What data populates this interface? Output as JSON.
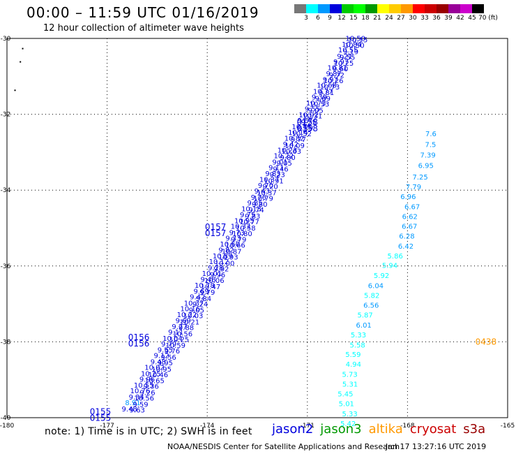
{
  "header": {
    "title": "00:00 – 11:59 UTC 01/16/2019",
    "subtitle": "12 hour collection of altimeter wave heights"
  },
  "color_scale": {
    "colors": [
      "#777777",
      "#00ffff",
      "#0099ff",
      "#0000dd",
      "#00cc00",
      "#00ff00",
      "#009900",
      "#ffff00",
      "#ffcc00",
      "#ff9900",
      "#ff0000",
      "#cc0000",
      "#990000",
      "#990099",
      "#cc00cc",
      "#000000"
    ],
    "labels": [
      "3",
      "6",
      "9",
      "12",
      "15",
      "18",
      "21",
      "24",
      "27",
      "30",
      "33",
      "36",
      "39",
      "42",
      "45",
      "70 (ft)"
    ]
  },
  "map": {
    "lon_ticks": [
      "-180",
      "-177",
      "-174",
      "-171",
      "-168",
      "-165"
    ],
    "lat_ticks": [
      "-30",
      "-32",
      "-34",
      "-36",
      "-38",
      "-40"
    ]
  },
  "chart_data": {
    "type": "scatter",
    "xlim": [
      -180,
      -165
    ],
    "ylim": [
      -40,
      -30
    ],
    "grid": true,
    "tracks": [
      {
        "name": "jason2",
        "values": [
          "9.48",
          "8.91",
          "9.34",
          "10.76",
          "10.55",
          "9.96",
          "10.25",
          "10.02",
          "9.48",
          "9.12",
          "9.55",
          "9.79",
          "10.04",
          "9.11",
          "9.27",
          "9.69",
          "10.22",
          "10.16",
          "10.37",
          "9.42",
          "9.69",
          "10.78",
          "9.48",
          "10.01",
          "9.28",
          "10.12",
          "10.89",
          "9.82",
          "10.60",
          "9.33",
          "9.73",
          "10.33",
          "10.95",
          "9.75",
          "10.13",
          "9.85",
          "9.76",
          "9.43",
          "9.70",
          "10.37",
          "9.83",
          "9.11",
          "9.01",
          "10.22",
          "10.23",
          "9.42",
          "10.82",
          "10.14",
          "10.45",
          "9.67",
          "10.92",
          "9.55",
          "10.73",
          "9.39",
          "10.77",
          "10.68",
          "9.97",
          "9.87",
          "10.81",
          "9.97",
          "9.21",
          "10.55",
          "10.84",
          "10.50"
        ],
        "lon": [
          -176.33,
          -176.23,
          -176.12,
          -176.01,
          -175.9,
          -175.8,
          -175.69,
          -175.58,
          -175.47,
          -175.37,
          -175.26,
          -175.15,
          -175.04,
          -174.94,
          -174.83,
          -174.72,
          -174.61,
          -174.51,
          -174.4,
          -174.29,
          -174.18,
          -174.08,
          -173.97,
          -173.86,
          -173.75,
          -173.65,
          -173.54,
          -173.43,
          -173.32,
          -173.22,
          -173.11,
          -173.0,
          -172.89,
          -172.79,
          -172.68,
          -172.57,
          -172.46,
          -172.36,
          -172.25,
          -172.14,
          -172.03,
          -171.93,
          -171.82,
          -171.71,
          -171.6,
          -171.5,
          -171.39,
          -171.28,
          -171.17,
          -171.07,
          -170.96,
          -170.85,
          -170.74,
          -170.64,
          -170.53,
          -170.42,
          -170.31,
          -170.21,
          -170.1,
          -169.99,
          -169.88,
          -169.78,
          -169.67,
          -169.56
        ],
        "lat": [
          -39.83,
          -39.67,
          -39.52,
          -39.36,
          -39.21,
          -39.05,
          -38.9,
          -38.74,
          -38.59,
          -38.43,
          -38.28,
          -38.12,
          -37.97,
          -37.81,
          -37.66,
          -37.5,
          -37.35,
          -37.19,
          -37.04,
          -36.88,
          -36.73,
          -36.57,
          -36.42,
          -36.26,
          -36.11,
          -35.95,
          -35.8,
          -35.64,
          -35.49,
          -35.33,
          -35.18,
          -35.02,
          -34.87,
          -34.71,
          -34.56,
          -34.4,
          -34.25,
          -34.09,
          -33.94,
          -33.78,
          -33.63,
          -33.47,
          -33.32,
          -33.16,
          -33.01,
          -32.85,
          -32.7,
          -32.54,
          -32.39,
          -32.23,
          -32.08,
          -31.92,
          -31.77,
          -31.61,
          -31.46,
          -31.3,
          -31.15,
          -30.99,
          -30.84,
          -30.68,
          -30.53,
          -30.37,
          -30.22,
          -30.06
        ]
      },
      {
        "name": "cryosat",
        "values": [
          "9.63",
          "9.59",
          "10.56",
          "9.26",
          "9.36",
          "10.65",
          "10.46",
          "10.95",
          "9.95",
          "9.56",
          "9.76",
          "10.59",
          "10.25",
          "10.56",
          "9.88",
          "10.21",
          "10.03",
          "9.05",
          "9.24",
          "9.84",
          "9.79",
          "10.47",
          "10.06",
          "9.96",
          "9.92",
          "10.00",
          "10.93",
          "10.87",
          "10.66",
          "9.79",
          "10.80",
          "10.58",
          "10.77",
          "9.83",
          "9.74",
          "9.80",
          "10.79",
          "10.37",
          "9.20",
          "10.91",
          "9.23",
          "9.46",
          "9.05",
          "9.80",
          "10.63",
          "10.09",
          "9.77",
          "10.52",
          "9.79",
          "9.25",
          "10.31",
          "9.05",
          "10.53",
          "9.69",
          "9.81",
          "10.73",
          "10.26",
          "9.72",
          "9.60",
          "10.25",
          "9.55",
          "9.19",
          "10.50",
          "10.15"
        ],
        "lon": [
          -176.1,
          -176.0,
          -175.89,
          -175.79,
          -175.68,
          -175.58,
          -175.47,
          -175.37,
          -175.26,
          -175.16,
          -175.05,
          -174.95,
          -174.84,
          -174.74,
          -174.63,
          -174.53,
          -174.42,
          -174.32,
          -174.21,
          -174.11,
          -174.0,
          -173.9,
          -173.79,
          -173.69,
          -173.58,
          -173.48,
          -173.37,
          -173.27,
          -173.16,
          -173.06,
          -172.95,
          -172.85,
          -172.74,
          -172.64,
          -172.53,
          -172.43,
          -172.32,
          -172.22,
          -172.11,
          -172.01,
          -171.9,
          -171.8,
          -171.69,
          -171.59,
          -171.48,
          -171.38,
          -171.27,
          -171.17,
          -171.06,
          -170.96,
          -170.85,
          -170.75,
          -170.64,
          -170.54,
          -170.43,
          -170.33,
          -170.22,
          -170.12,
          -170.01,
          -169.91,
          -169.8,
          -169.7,
          -169.59,
          -169.49
        ],
        "lat": [
          -39.86,
          -39.71,
          -39.55,
          -39.4,
          -39.24,
          -39.09,
          -38.93,
          -38.78,
          -38.62,
          -38.47,
          -38.31,
          -38.16,
          -38.0,
          -37.85,
          -37.69,
          -37.54,
          -37.38,
          -37.23,
          -37.07,
          -36.92,
          -36.76,
          -36.61,
          -36.45,
          -36.3,
          -36.14,
          -35.99,
          -35.83,
          -35.68,
          -35.52,
          -35.37,
          -35.21,
          -35.06,
          -34.9,
          -34.75,
          -34.59,
          -34.44,
          -34.28,
          -34.13,
          -33.97,
          -33.82,
          -33.66,
          -33.51,
          -33.35,
          -33.2,
          -33.04,
          -32.89,
          -32.73,
          -32.58,
          -32.42,
          -32.27,
          -32.11,
          -31.96,
          -31.8,
          -31.65,
          -31.49,
          -31.34,
          -31.18,
          -31.03,
          -30.87,
          -30.72,
          -30.56,
          -30.41,
          -30.25,
          -30.1
        ]
      },
      {
        "name": "jason3",
        "values": [
          "6.96",
          "6.67",
          "6.62",
          "6.67",
          "6.28",
          "6.42",
          "5.86",
          "5.94",
          "5.92",
          "6.04",
          "5.82",
          "6.56",
          "5.87",
          "6.01",
          "5.33",
          "5.58",
          "5.59",
          "4.94",
          "5.73",
          "5.31",
          "5.45",
          "5.01",
          "5.33",
          "5.42",
          "7.79",
          "7.25",
          "6.95",
          "7.39",
          "7.5",
          "7.6"
        ],
        "lon": [
          -167.98,
          -167.86,
          -167.93,
          -167.94,
          -168.02,
          -168.05,
          -168.37,
          -168.53,
          -168.78,
          -168.95,
          -169.07,
          -169.09,
          -169.27,
          -169.31,
          -169.47,
          -169.5,
          -169.63,
          -169.62,
          -169.73,
          -169.72,
          -169.86,
          -169.83,
          -169.73,
          -169.78,
          -167.82,
          -167.62,
          -167.45,
          -167.39,
          -167.31,
          -167.3
        ],
        "lat": [
          -34.24,
          -34.5,
          -34.76,
          -35.02,
          -35.28,
          -35.54,
          -35.8,
          -36.05,
          -36.32,
          -36.58,
          -36.84,
          -37.1,
          -37.36,
          -37.62,
          -37.88,
          -38.15,
          -38.4,
          -38.66,
          -38.92,
          -39.18,
          -39.44,
          -39.7,
          -39.96,
          -40.22,
          -33.98,
          -33.72,
          -33.42,
          -33.14,
          -32.86,
          -32.58
        ]
      }
    ],
    "pass_times": [
      {
        "time": "0155",
        "lon": -177.2,
        "lat": -39.92
      },
      {
        "time": "0156",
        "lon": -176.05,
        "lat": -37.96
      },
      {
        "time": "0157",
        "lon": -173.75,
        "lat": -35.05
      },
      {
        "time": "0158",
        "lon": -171.0,
        "lat": -32.28
      },
      {
        "time": "0438",
        "lon": -165.65,
        "lat": -38.08
      }
    ]
  },
  "footer": {
    "note": "note: 1) Time is in UTC; 2) SWH is in feet",
    "legend": [
      {
        "name": "jason2",
        "color": "#0000dd"
      },
      {
        "name": "jason3",
        "color": "#009900"
      },
      {
        "name": "altika",
        "color": "#ff9900"
      },
      {
        "name": "cryosat",
        "color": "#cc0000"
      },
      {
        "name": "s3a",
        "color": "#990000"
      }
    ],
    "credit": "NOAA/NESDIS Center for Satellite Applications and Research",
    "timestamp": "Jan 17 13:27:16 UTC 2019"
  }
}
